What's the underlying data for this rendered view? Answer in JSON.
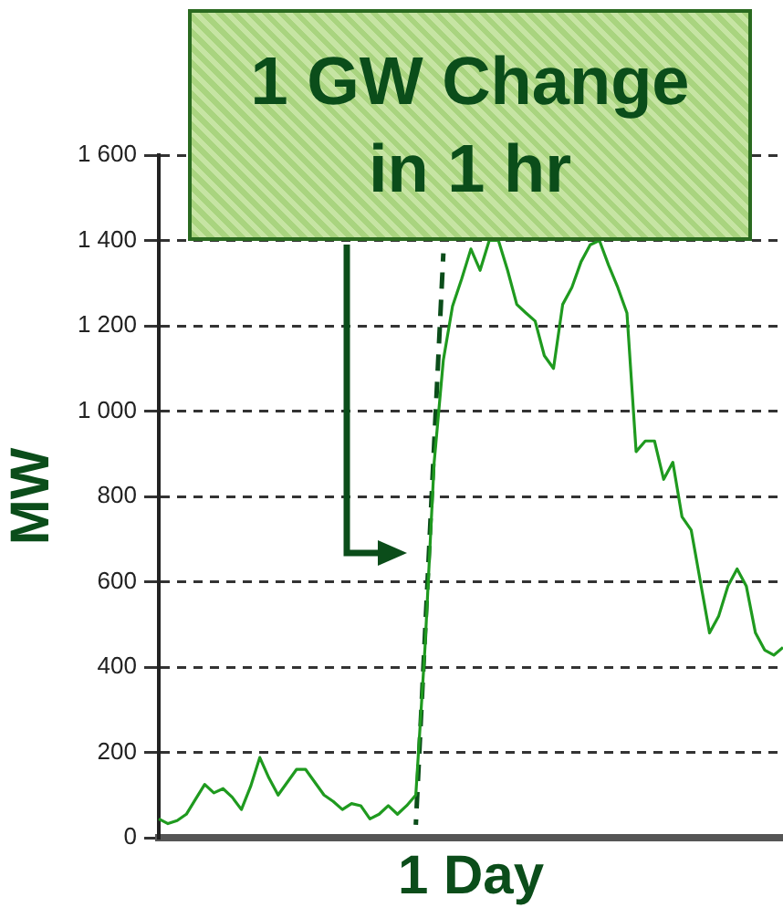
{
  "chart_data": {
    "type": "line",
    "xlabel": "1 Day",
    "ylabel": "MW",
    "annotations": [
      "1 GW Change in 1 hr"
    ],
    "categories": [
      null,
      null,
      null,
      null,
      null,
      null,
      null,
      null,
      null,
      null,
      null,
      null,
      null,
      null,
      null,
      null,
      null,
      null,
      null,
      null,
      null,
      null,
      null,
      null,
      null,
      null,
      null,
      null,
      null,
      null,
      null,
      null,
      null,
      null,
      null,
      null,
      null,
      null,
      null,
      null,
      null,
      null,
      null,
      null,
      null,
      null,
      null,
      null,
      null,
      null,
      null,
      null,
      null,
      null,
      null,
      null,
      null,
      null,
      null,
      null,
      null,
      null,
      null,
      null,
      null,
      null,
      null,
      null,
      null
    ],
    "series": [
      {
        "color": "#1f9a1f",
        "values": [
          44,
          33,
          40,
          55,
          90,
          125,
          105,
          115,
          95,
          66,
          120,
          188,
          140,
          100,
          130,
          160,
          160,
          130,
          100,
          85,
          66,
          80,
          75,
          44,
          55,
          75,
          55,
          75,
          100,
          446,
          880,
          1120,
          1246,
          1310,
          1380,
          1330,
          1400,
          1400,
          1330,
          1250,
          1230,
          1211,
          1130,
          1100,
          1250,
          1290,
          1350,
          1390,
          1400,
          1342,
          1290,
          1230,
          905,
          930,
          930,
          840,
          880,
          752,
          721,
          600,
          480,
          520,
          590,
          630,
          590,
          480,
          440,
          428,
          446
        ]
      },
      {
        "color": "#0b4d1a",
        "line_style": "dashed",
        "values": [
          null,
          null,
          null,
          null,
          null,
          null,
          null,
          null,
          null,
          null,
          null,
          null,
          null,
          null,
          null,
          null,
          null,
          null,
          null,
          null,
          null,
          null,
          null,
          null,
          null,
          null,
          null,
          null,
          30,
          null,
          null,
          1370,
          null,
          null,
          null,
          null,
          null,
          null,
          null,
          null,
          null,
          null,
          null,
          null,
          null,
          null,
          null,
          null,
          null,
          null,
          null,
          null,
          null,
          null,
          null,
          null,
          null,
          null,
          null,
          null,
          null,
          null,
          null,
          null,
          null,
          null,
          null,
          null,
          null
        ]
      }
    ],
    "ylim": [
      0,
      1600
    ],
    "yticks": [
      0,
      200,
      400,
      600,
      800,
      {
        "value": 1000,
        "label": "1 000"
      },
      {
        "value": 1200,
        "label": "1 200"
      },
      {
        "value": 1400,
        "label": "1 400"
      },
      {
        "value": 1600,
        "label": "1 600"
      }
    ],
    "grid": "y",
    "legend": false,
    "tick_labels": "y",
    "marker": "none"
  }
}
